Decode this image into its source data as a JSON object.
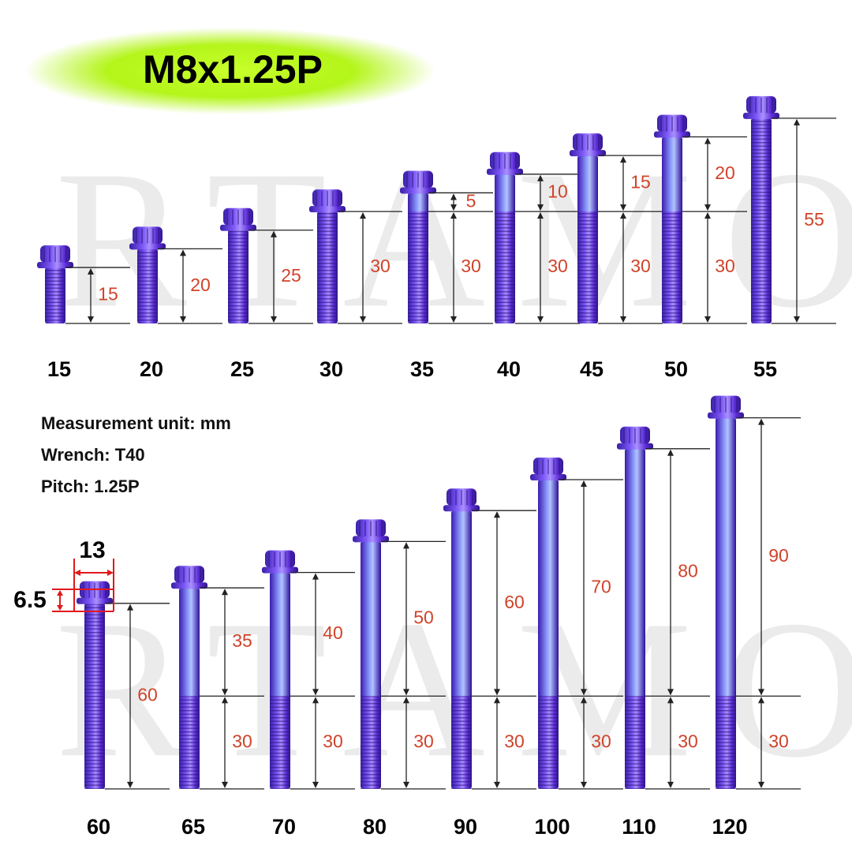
{
  "title": "M8x1.25P",
  "watermark": "RTAMO",
  "specs": [
    "Measurement unit: mm",
    "Wrench: T40",
    "Pitch: 1.25P"
  ],
  "head_dims": {
    "width": "13",
    "height": "6.5"
  },
  "rows": [
    {
      "bolts": [
        {
          "length": 15,
          "dims": [
            15
          ]
        },
        {
          "length": 20,
          "dims": [
            20
          ]
        },
        {
          "length": 25,
          "dims": [
            25
          ]
        },
        {
          "length": 30,
          "dims": [
            30
          ]
        },
        {
          "length": 35,
          "dims": [
            5,
            30
          ]
        },
        {
          "length": 40,
          "dims": [
            10,
            30
          ]
        },
        {
          "length": 45,
          "dims": [
            15,
            30
          ]
        },
        {
          "length": 50,
          "dims": [
            20,
            30
          ]
        },
        {
          "length": 55,
          "dims": [
            55
          ]
        }
      ]
    },
    {
      "bolts": [
        {
          "length": 60,
          "dims": [
            60
          ]
        },
        {
          "length": 65,
          "dims": [
            35,
            30
          ]
        },
        {
          "length": 70,
          "dims": [
            40,
            30
          ]
        },
        {
          "length": 80,
          "dims": [
            50,
            30
          ]
        },
        {
          "length": 90,
          "dims": [
            60,
            30
          ]
        },
        {
          "length": 100,
          "dims": [
            70,
            30
          ]
        },
        {
          "length": 110,
          "dims": [
            80,
            30
          ]
        },
        {
          "length": 120,
          "dims": [
            90,
            30
          ]
        }
      ]
    }
  ]
}
